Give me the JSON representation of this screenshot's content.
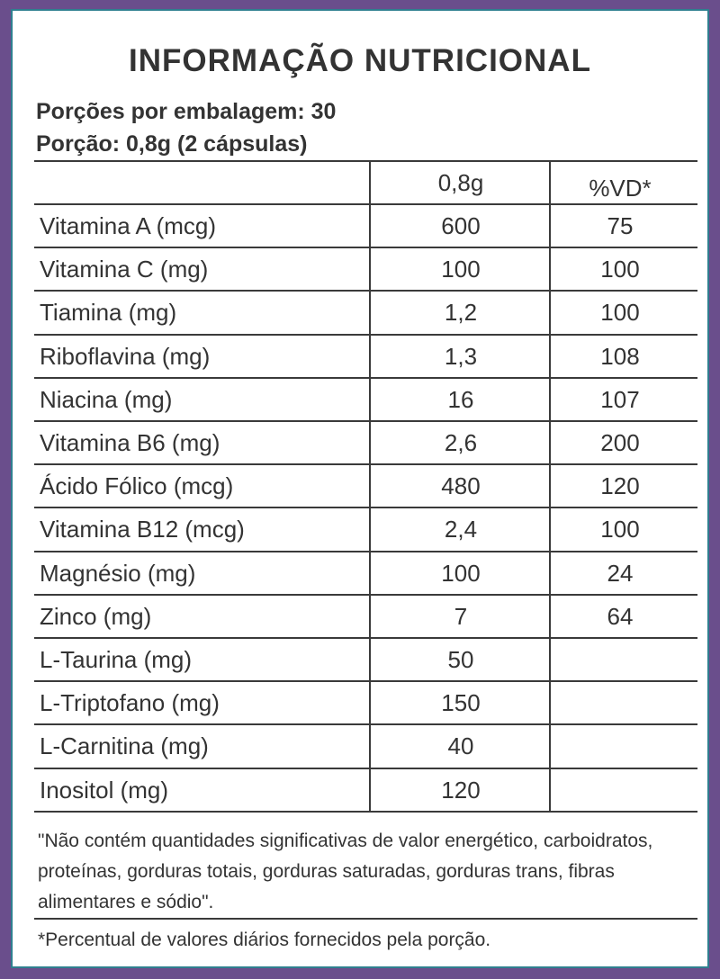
{
  "title": "INFORMAÇÃO NUTRICIONAL",
  "servings_per_package": "Porções por embalagem: 30",
  "serving_size": "Porção: 0,8g (2 cápsulas)",
  "header": {
    "amount": "0,8g",
    "dv": "%VD*"
  },
  "rows": [
    {
      "name": "Vitamina A (mcg)",
      "amount": "600",
      "dv": "75"
    },
    {
      "name": "Vitamina C (mg)",
      "amount": "100",
      "dv": "100"
    },
    {
      "name": "Tiamina (mg)",
      "amount": "1,2",
      "dv": "100"
    },
    {
      "name": "Riboflavina (mg)",
      "amount": "1,3",
      "dv": "108"
    },
    {
      "name": "Niacina (mg)",
      "amount": "16",
      "dv": "107"
    },
    {
      "name": "Vitamina B6 (mg)",
      "amount": "2,6",
      "dv": "200"
    },
    {
      "name": "Ácido Fólico (mcg)",
      "amount": "480",
      "dv": "120"
    },
    {
      "name": "Vitamina B12 (mcg)",
      "amount": "2,4",
      "dv": "100"
    },
    {
      "name": "Magnésio (mg)",
      "amount": "100",
      "dv": "24"
    },
    {
      "name": "Zinco (mg)",
      "amount": "7",
      "dv": "64"
    },
    {
      "name": "L-Taurina (mg)",
      "amount": "50",
      "dv": ""
    },
    {
      "name": "L-Triptofano (mg)",
      "amount": "150",
      "dv": ""
    },
    {
      "name": "L-Carnitina (mg)",
      "amount": "40",
      "dv": ""
    },
    {
      "name": "Inositol (mg)",
      "amount": "120",
      "dv": ""
    }
  ],
  "footnote1": "\"Não contém quantidades significativas de valor energético, carboidratos, proteínas, gorduras totais, gorduras saturadas, gorduras trans, fibras alimentares e sódio\".",
  "footnote2": "*Percentual de valores diários fornecidos pela porção."
}
